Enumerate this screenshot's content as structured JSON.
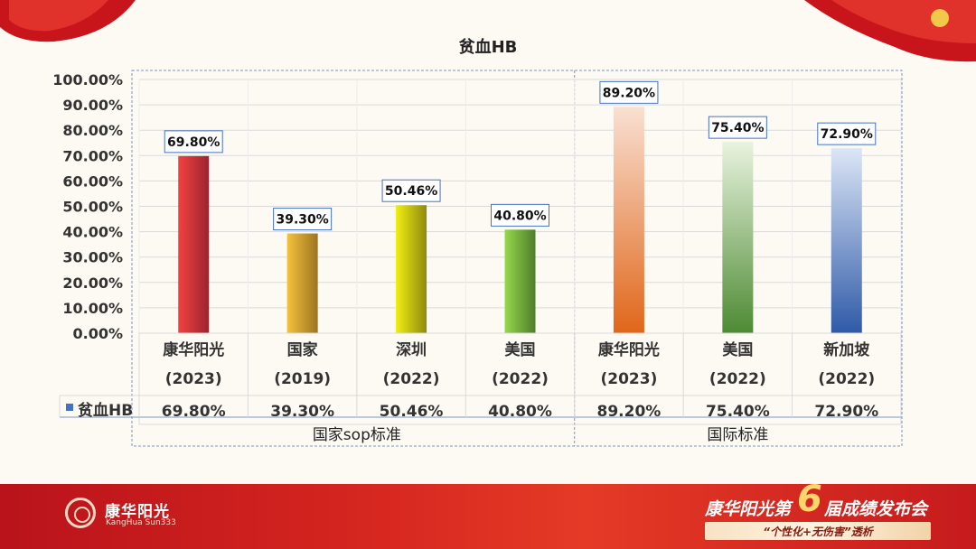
{
  "chart_data": {
    "type": "bar",
    "title": "贫血HB",
    "categories": [
      "康华阳光\n(2023)",
      "国家\n(2019)",
      "深圳\n(2022)",
      "美国\n(2022)",
      "康华阳光\n(2023)",
      "美国\n(2022)",
      "新加坡\n(2022)"
    ],
    "category_names": [
      "康华阳光",
      "国家",
      "深圳",
      "美国",
      "康华阳光",
      "美国",
      "新加坡"
    ],
    "category_years": [
      "(2023)",
      "(2019)",
      "(2022)",
      "(2022)",
      "(2023)",
      "(2022)",
      "(2022)"
    ],
    "groups": [
      {
        "label": "国家sop标准",
        "count": 4
      },
      {
        "label": "国际标准",
        "count": 3
      }
    ],
    "series": [
      {
        "name": "贫血HB",
        "values": [
          69.8,
          39.3,
          50.46,
          40.8,
          89.2,
          75.4,
          72.9
        ]
      }
    ],
    "data_labels": [
      "69.80%",
      "39.30%",
      "50.46%",
      "40.80%",
      "89.20%",
      "75.40%",
      "72.90%"
    ],
    "table_values": [
      "69.80%",
      "39.30%",
      "50.46%",
      "40.80%",
      "89.20%",
      "75.40%",
      "72.90%"
    ],
    "y_ticks": [
      "0.00%",
      "10.00%",
      "20.00%",
      "30.00%",
      "40.00%",
      "50.00%",
      "60.00%",
      "70.00%",
      "80.00%",
      "90.00%",
      "100.00%"
    ],
    "ylim": [
      0,
      100
    ],
    "grid": true,
    "legend_color": "#4472c4",
    "bar_colors": [
      [
        "#f2423f",
        "#9b2430"
      ],
      [
        "#f5c23c",
        "#9c7420"
      ],
      [
        "#f1ee12",
        "#8e8a10"
      ],
      [
        "#96d84b",
        "#4e7e2a"
      ],
      [
        "#f9e0d2",
        "#e0661a"
      ],
      [
        "#e9f3df",
        "#4e8a34"
      ],
      [
        "#dce6f6",
        "#2f5aa8"
      ]
    ]
  },
  "footer": {
    "logo_cn": "康华阳光",
    "logo_en": "KangHua Sun333",
    "event_a": "康华阳光第",
    "event_num": "6",
    "event_b": "届成绩发布会",
    "slogan": "“个性化+无伤害”透析"
  }
}
